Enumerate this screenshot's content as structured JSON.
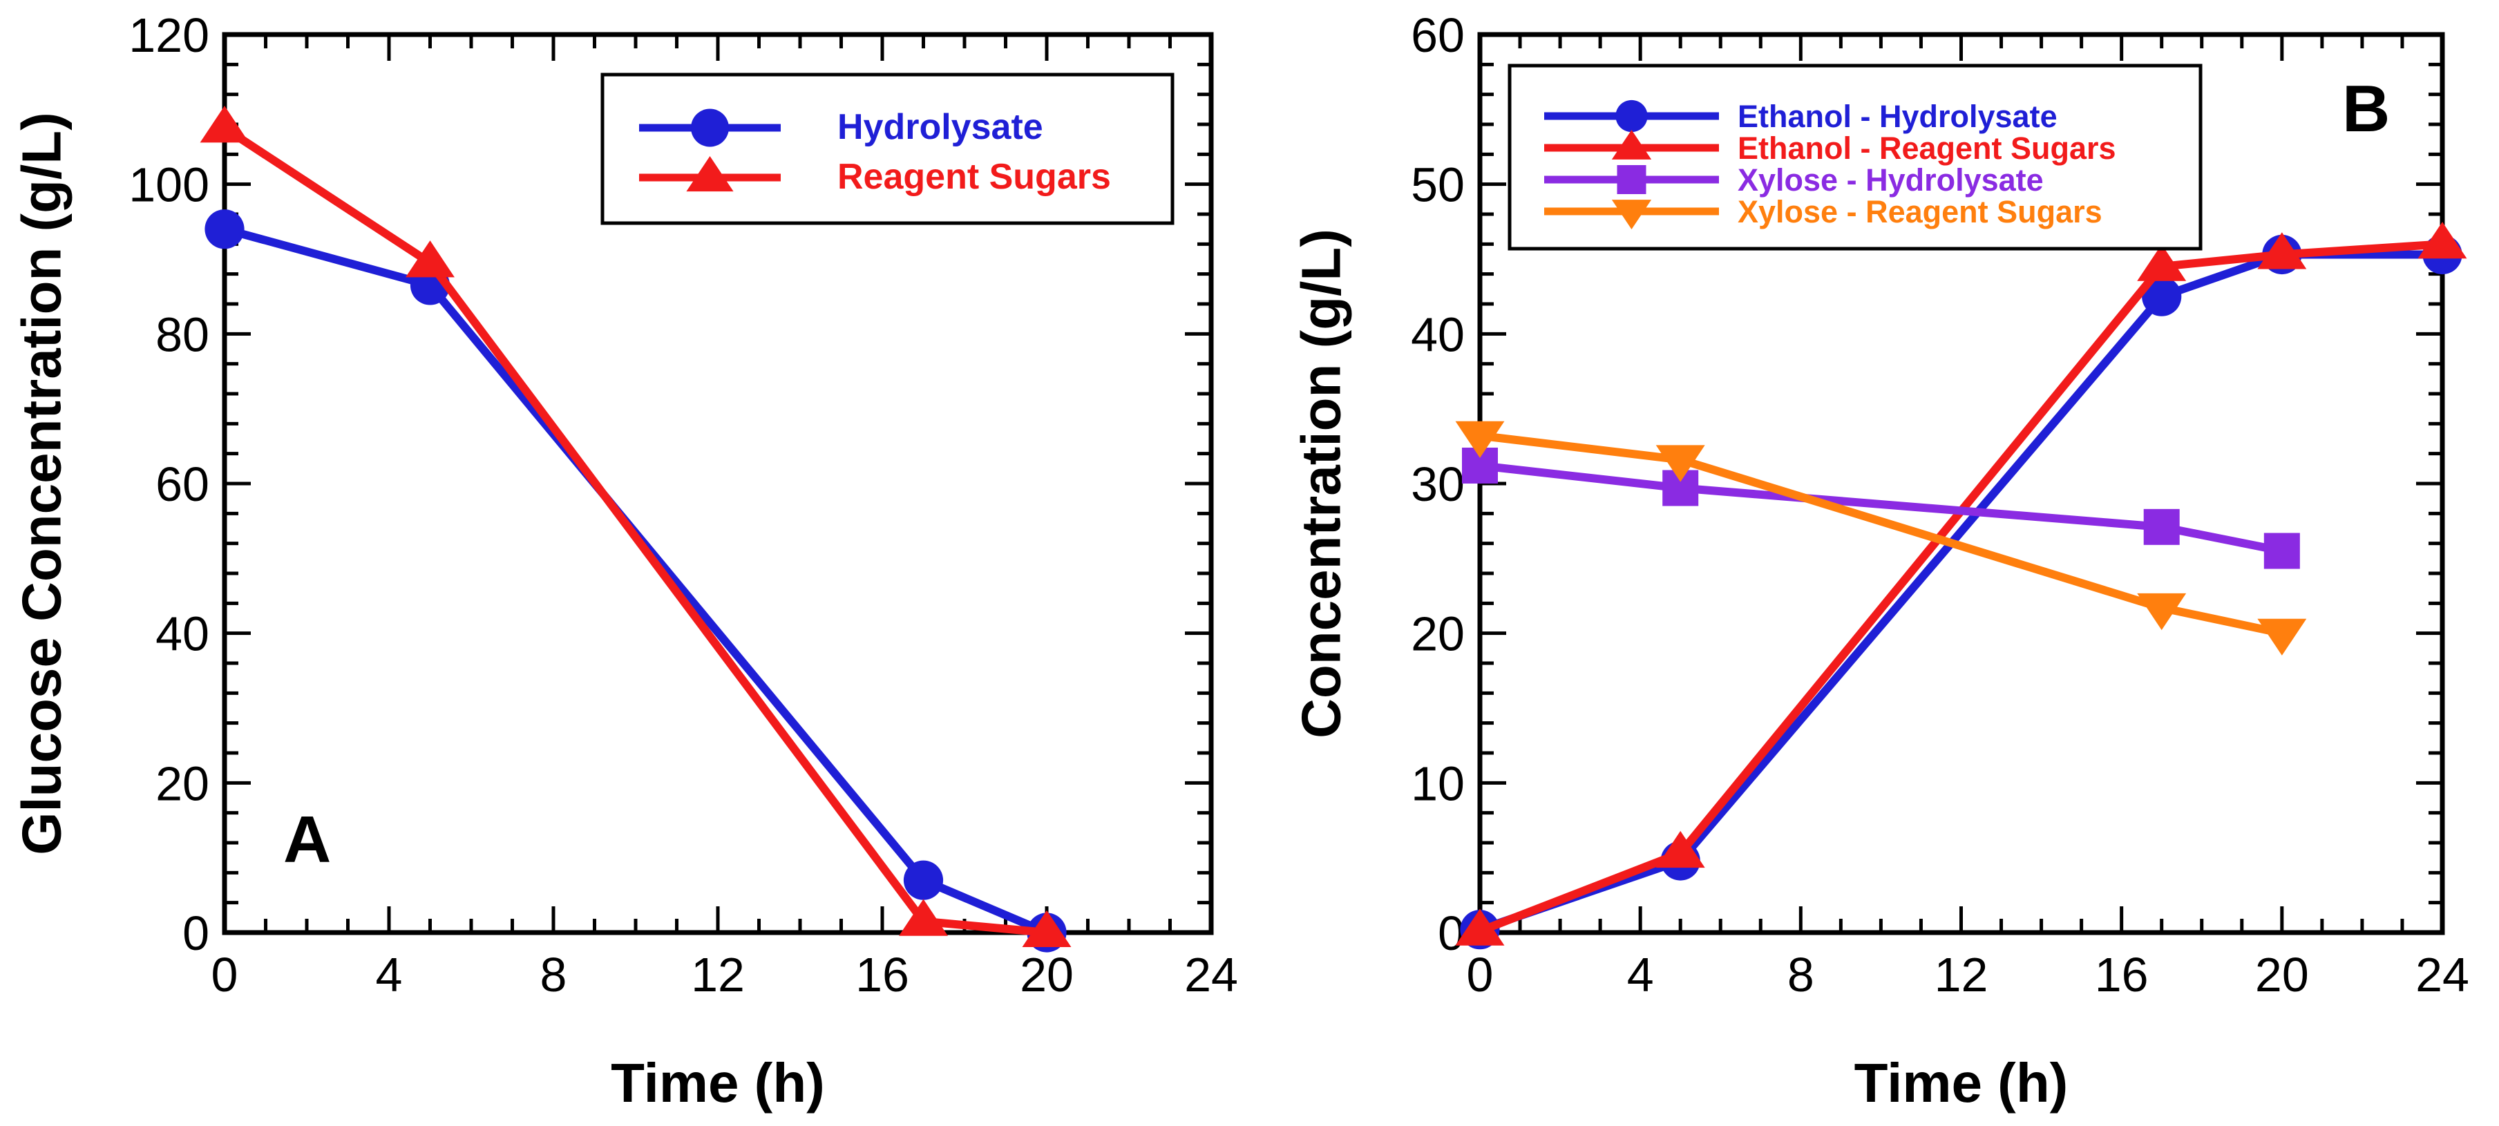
{
  "chart_data": [
    {
      "type": "line",
      "panel_label": "A",
      "title": "",
      "xlabel": "Time (h)",
      "ylabel": "Glucose Concentration (g/L)",
      "xlim": [
        0,
        24
      ],
      "ylim": [
        0,
        120
      ],
      "xticks": [
        0,
        4,
        8,
        12,
        16,
        20,
        24
      ],
      "yticks": [
        0,
        20,
        40,
        60,
        80,
        100,
        120
      ],
      "grid": false,
      "legend_position": "top-right",
      "series": [
        {
          "name": "Hydrolysate",
          "color": "#1f1fd6",
          "marker": "circle",
          "x": [
            0,
            5,
            17,
            20
          ],
          "y": [
            94,
            86.5,
            7,
            0
          ]
        },
        {
          "name": "Reagent Sugars",
          "color": "#f21b1b",
          "marker": "triangle-up",
          "x": [
            0,
            5,
            17,
            20
          ],
          "y": [
            107.5,
            89.5,
            1.5,
            0
          ]
        }
      ]
    },
    {
      "type": "line",
      "panel_label": "B",
      "title": "",
      "xlabel": "Time (h)",
      "ylabel": "Concentration (g/L)",
      "xlim": [
        0,
        24
      ],
      "ylim": [
        0,
        60
      ],
      "xticks": [
        0,
        4,
        8,
        12,
        16,
        20,
        24
      ],
      "yticks": [
        0,
        10,
        20,
        30,
        40,
        50,
        60
      ],
      "grid": false,
      "legend_position": "top-left",
      "series": [
        {
          "name": "Ethanol - Hydrolysate",
          "color": "#1f1fd6",
          "marker": "circle",
          "x": [
            0,
            5,
            17,
            20,
            24
          ],
          "y": [
            0.2,
            4.8,
            42.5,
            45.3,
            45.3
          ]
        },
        {
          "name": "Ethanol - Reagent Sugars",
          "color": "#f21b1b",
          "marker": "triangle-up",
          "x": [
            0,
            5,
            17,
            20,
            24
          ],
          "y": [
            0.1,
            5.3,
            44.5,
            45.3,
            46
          ]
        },
        {
          "name": "Xylose - Hydrolysate",
          "color": "#8a2be2",
          "marker": "square",
          "x": [
            0,
            5,
            17,
            20
          ],
          "y": [
            31.2,
            29.7,
            27.1,
            25.5
          ]
        },
        {
          "name": "Xylose - Reagent Sugars",
          "color": "#ff7f0e",
          "marker": "triangle-down",
          "x": [
            0,
            5,
            17,
            20
          ],
          "y": [
            33.2,
            31.6,
            21.7,
            20
          ]
        }
      ]
    }
  ]
}
